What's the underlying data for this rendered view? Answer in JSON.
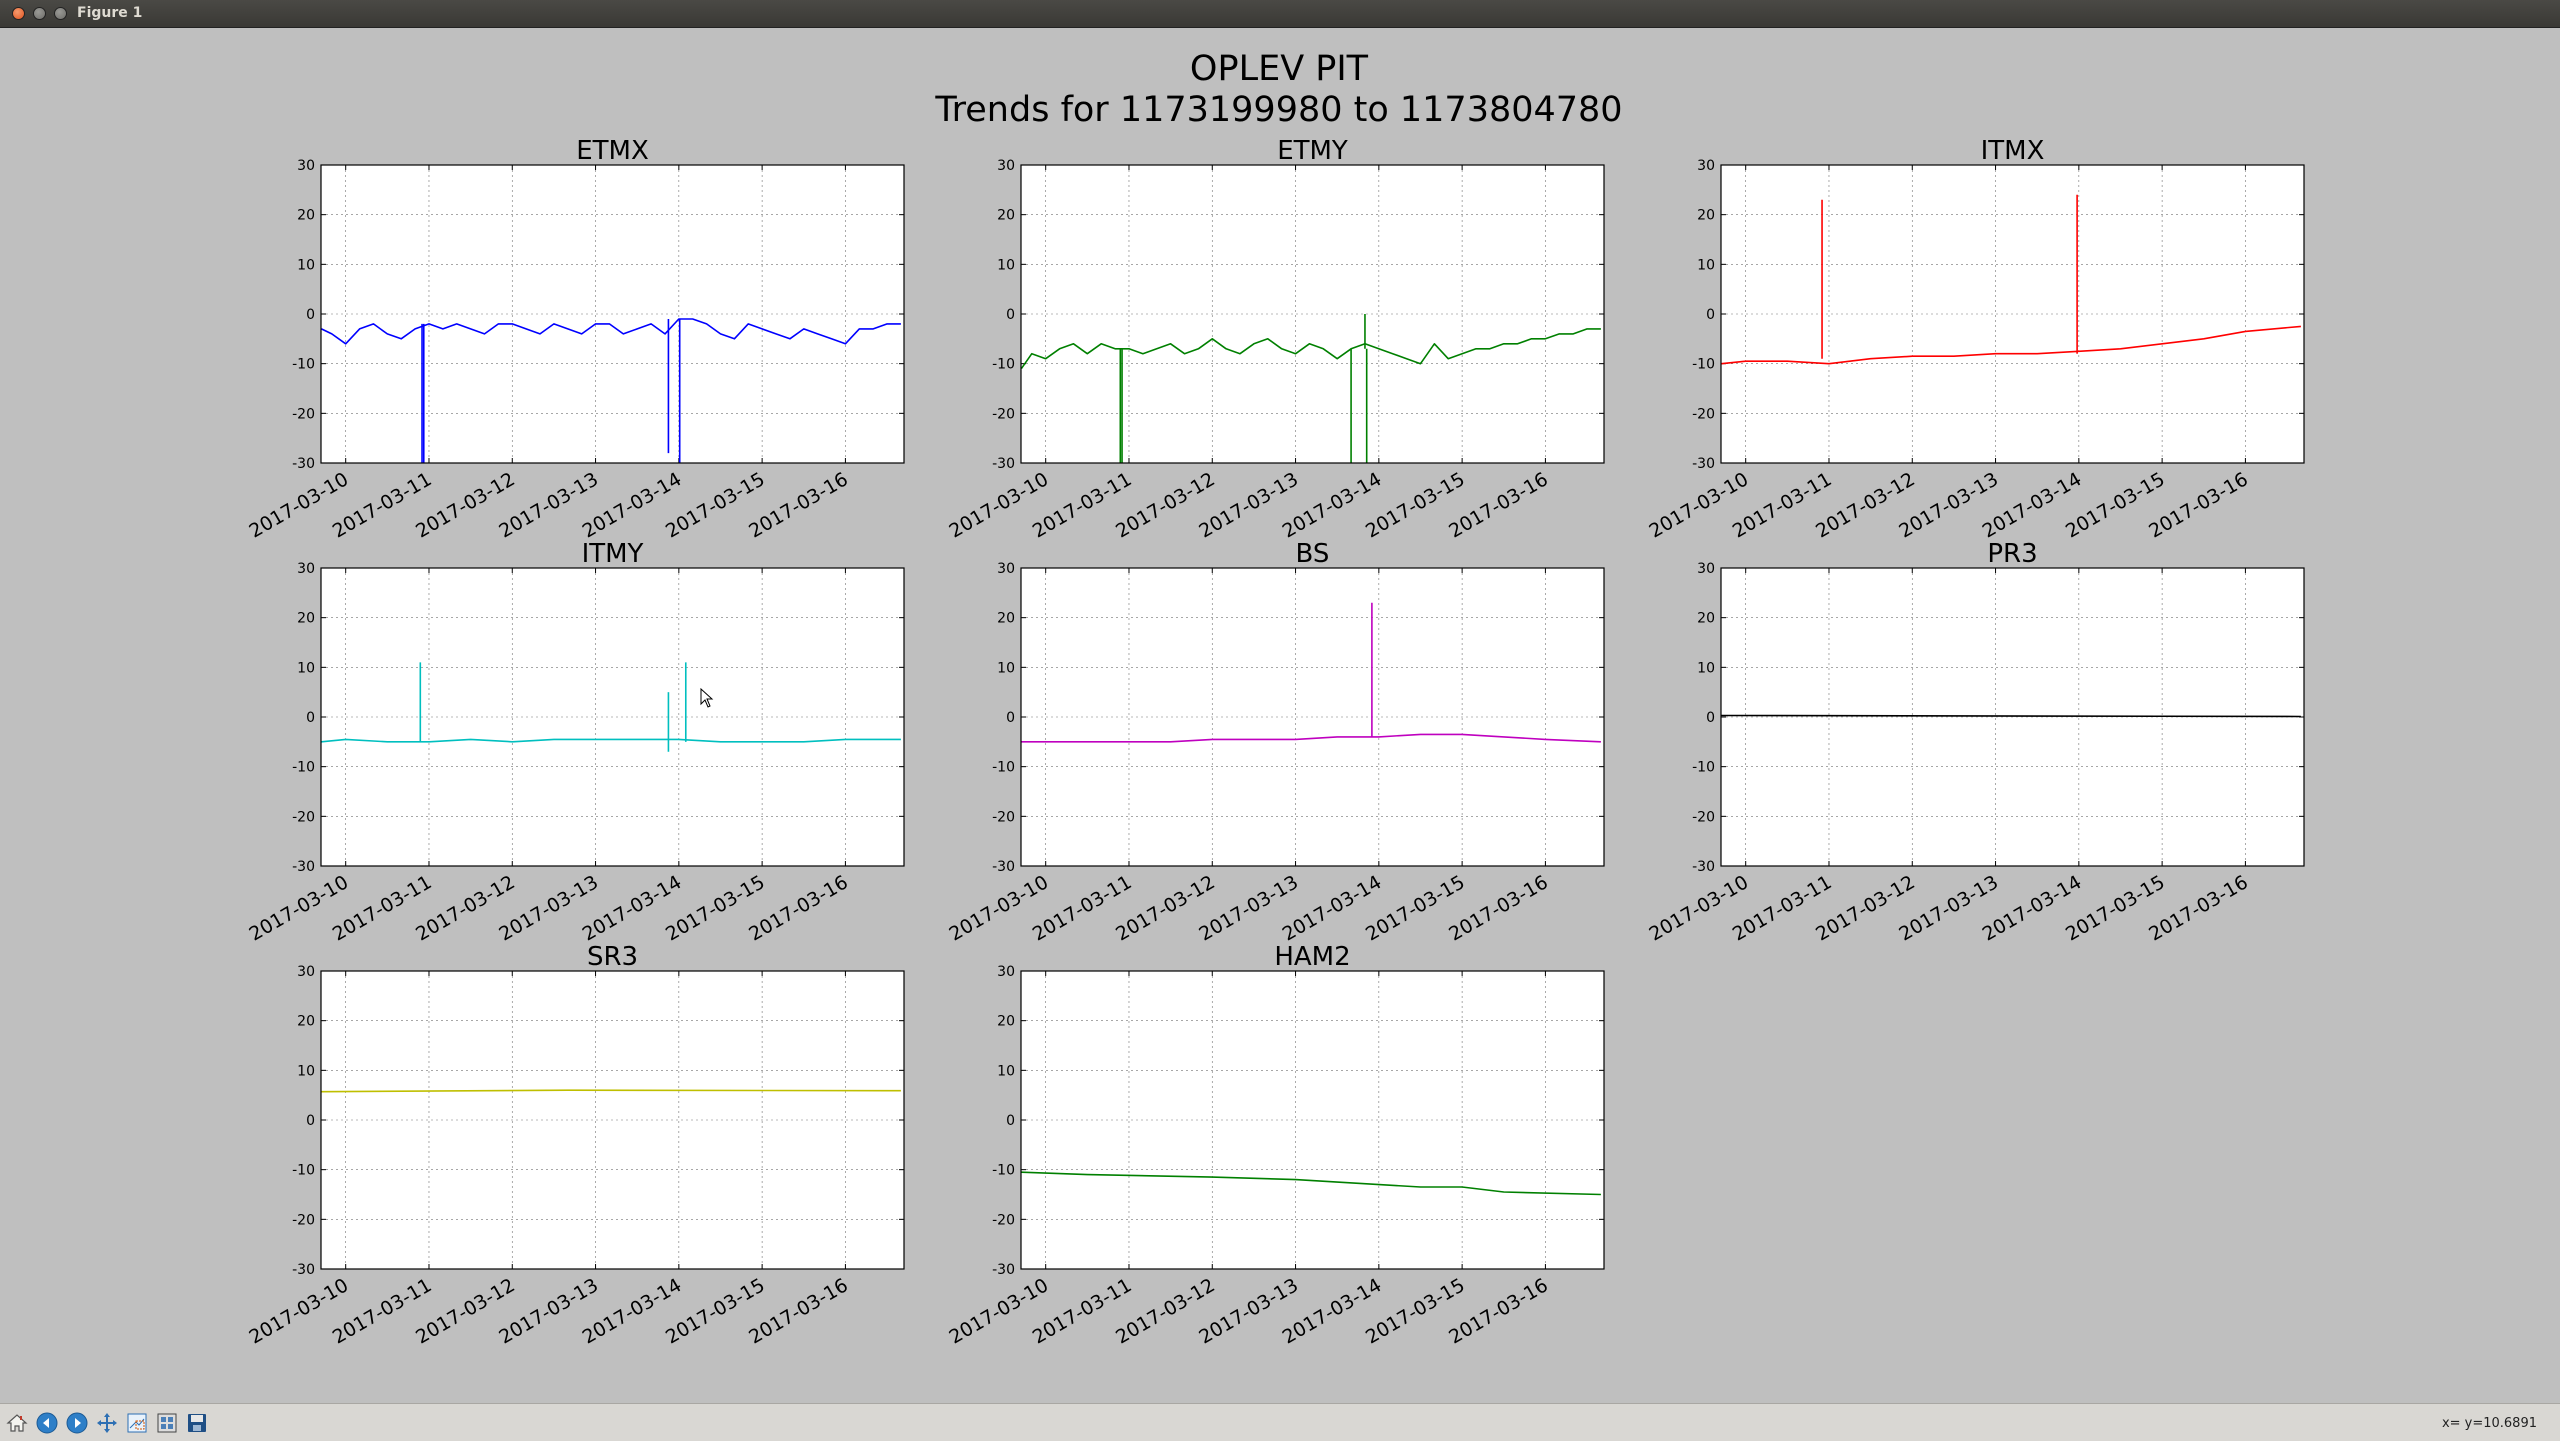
{
  "window": {
    "title": "Figure 1"
  },
  "figure": {
    "title_line1": "OPLEV PIT",
    "title_line2": "Trends for 1173199980 to 1173804780"
  },
  "toolbar": {
    "buttons": [
      "home-icon",
      "back-icon",
      "forward-icon",
      "pan-icon",
      "zoom-icon",
      "subplots-icon",
      "save-icon"
    ],
    "coord_readout": "x= y=10.6891"
  },
  "chart_data": [
    {
      "type": "line",
      "title": "ETMX",
      "color": "#0000ff",
      "ylim": [
        -30,
        30
      ],
      "yticks": [
        30,
        20,
        10,
        0,
        -10,
        -20,
        -30
      ],
      "xlim": [
        "2017-03-09T16:53",
        "2017-03-16T16:53"
      ],
      "xticks": [
        "2017-03-10",
        "2017-03-11",
        "2017-03-12",
        "2017-03-13",
        "2017-03-14",
        "2017-03-15",
        "2017-03-16"
      ],
      "grid": true,
      "x": [
        "2017-03-09T17:00",
        "2017-03-09T20:00",
        "2017-03-10T00:00",
        "2017-03-10T04:00",
        "2017-03-10T08:00",
        "2017-03-10T12:00",
        "2017-03-10T16:00",
        "2017-03-10T20:00",
        "2017-03-11T00:00",
        "2017-03-11T04:00",
        "2017-03-11T08:00",
        "2017-03-11T12:00",
        "2017-03-11T16:00",
        "2017-03-11T20:00",
        "2017-03-12T00:00",
        "2017-03-12T04:00",
        "2017-03-12T08:00",
        "2017-03-12T12:00",
        "2017-03-12T16:00",
        "2017-03-12T20:00",
        "2017-03-13T00:00",
        "2017-03-13T04:00",
        "2017-03-13T08:00",
        "2017-03-13T12:00",
        "2017-03-13T16:00",
        "2017-03-13T20:00",
        "2017-03-14T00:00",
        "2017-03-14T04:00",
        "2017-03-14T08:00",
        "2017-03-14T12:00",
        "2017-03-14T16:00",
        "2017-03-14T20:00",
        "2017-03-15T00:00",
        "2017-03-15T04:00",
        "2017-03-15T08:00",
        "2017-03-15T12:00",
        "2017-03-15T16:00",
        "2017-03-15T20:00",
        "2017-03-16T00:00",
        "2017-03-16T04:00",
        "2017-03-16T08:00",
        "2017-03-16T12:00",
        "2017-03-16T16:00"
      ],
      "y": [
        -3,
        -4,
        -6,
        -3,
        -2,
        -4,
        -5,
        -3,
        -2,
        -3,
        -2,
        -3,
        -4,
        -2,
        -2,
        -3,
        -4,
        -2,
        -3,
        -4,
        -2,
        -2,
        -4,
        -3,
        -2,
        -4,
        -1,
        -1,
        -2,
        -4,
        -5,
        -2,
        -3,
        -4,
        -5,
        -3,
        -4,
        -5,
        -6,
        -3,
        -3,
        -2,
        -2
      ],
      "spikes": [
        {
          "x": "2017-03-10T22:00",
          "from": -2,
          "to": -30
        },
        {
          "x": "2017-03-10T22:30",
          "from": -2,
          "to": -30
        },
        {
          "x": "2017-03-13T21:00",
          "from": -1,
          "to": -28
        },
        {
          "x": "2017-03-14T00:15",
          "from": -1,
          "to": -30
        }
      ]
    },
    {
      "type": "line",
      "title": "ETMY",
      "color": "#008000",
      "ylim": [
        -30,
        30
      ],
      "yticks": [
        30,
        20,
        10,
        0,
        -10,
        -20,
        -30
      ],
      "xlim": [
        "2017-03-09T16:53",
        "2017-03-16T16:53"
      ],
      "xticks": [
        "2017-03-10",
        "2017-03-11",
        "2017-03-12",
        "2017-03-13",
        "2017-03-14",
        "2017-03-15",
        "2017-03-16"
      ],
      "grid": true,
      "x": [
        "2017-03-09T17:00",
        "2017-03-09T20:00",
        "2017-03-10T00:00",
        "2017-03-10T04:00",
        "2017-03-10T08:00",
        "2017-03-10T12:00",
        "2017-03-10T16:00",
        "2017-03-10T20:00",
        "2017-03-11T00:00",
        "2017-03-11T04:00",
        "2017-03-11T08:00",
        "2017-03-11T12:00",
        "2017-03-11T16:00",
        "2017-03-11T20:00",
        "2017-03-12T00:00",
        "2017-03-12T04:00",
        "2017-03-12T08:00",
        "2017-03-12T12:00",
        "2017-03-12T16:00",
        "2017-03-12T20:00",
        "2017-03-13T00:00",
        "2017-03-13T04:00",
        "2017-03-13T08:00",
        "2017-03-13T12:00",
        "2017-03-13T16:00",
        "2017-03-13T20:00",
        "2017-03-14T00:00",
        "2017-03-14T04:00",
        "2017-03-14T08:00",
        "2017-03-14T12:00",
        "2017-03-14T16:00",
        "2017-03-14T20:00",
        "2017-03-15T00:00",
        "2017-03-15T04:00",
        "2017-03-15T08:00",
        "2017-03-15T12:00",
        "2017-03-15T16:00",
        "2017-03-15T20:00",
        "2017-03-16T00:00",
        "2017-03-16T04:00",
        "2017-03-16T08:00",
        "2017-03-16T12:00",
        "2017-03-16T16:00"
      ],
      "y": [
        -11,
        -8,
        -9,
        -7,
        -6,
        -8,
        -6,
        -7,
        -7,
        -8,
        -7,
        -6,
        -8,
        -7,
        -5,
        -7,
        -8,
        -6,
        -5,
        -7,
        -8,
        -6,
        -7,
        -9,
        -7,
        -6,
        -7,
        -8,
        -9,
        -10,
        -6,
        -9,
        -8,
        -7,
        -7,
        -6,
        -6,
        -5,
        -5,
        -4,
        -4,
        -3,
        -3
      ],
      "spikes": [
        {
          "x": "2017-03-10T21:30",
          "from": -7,
          "to": -30
        },
        {
          "x": "2017-03-10T22:00",
          "from": -7,
          "to": -30
        },
        {
          "x": "2017-03-13T16:00",
          "from": -7,
          "to": -30
        },
        {
          "x": "2017-03-13T20:00",
          "from": -7,
          "to": 0
        },
        {
          "x": "2017-03-13T20:30",
          "from": -7,
          "to": -30
        }
      ]
    },
    {
      "type": "line",
      "title": "ITMX",
      "color": "#ff0000",
      "ylim": [
        -30,
        30
      ],
      "yticks": [
        30,
        20,
        10,
        0,
        -10,
        -20,
        -30
      ],
      "xlim": [
        "2017-03-09T16:53",
        "2017-03-16T16:53"
      ],
      "xticks": [
        "2017-03-10",
        "2017-03-11",
        "2017-03-12",
        "2017-03-13",
        "2017-03-14",
        "2017-03-15",
        "2017-03-16"
      ],
      "grid": true,
      "x": [
        "2017-03-09T17:00",
        "2017-03-10T00:00",
        "2017-03-10T12:00",
        "2017-03-11T00:00",
        "2017-03-11T12:00",
        "2017-03-12T00:00",
        "2017-03-12T12:00",
        "2017-03-13T00:00",
        "2017-03-13T12:00",
        "2017-03-14T00:00",
        "2017-03-14T12:00",
        "2017-03-15T00:00",
        "2017-03-15T12:00",
        "2017-03-16T00:00",
        "2017-03-16T16:00"
      ],
      "y": [
        -10,
        -9.5,
        -9.5,
        -10,
        -9,
        -8.5,
        -8.5,
        -8,
        -8,
        -7.5,
        -7,
        -6,
        -5,
        -3.5,
        -2.5
      ],
      "spikes": [
        {
          "x": "2017-03-10T22:00",
          "from": -9,
          "to": 23
        },
        {
          "x": "2017-03-13T23:30",
          "from": -8,
          "to": 24
        }
      ]
    },
    {
      "type": "line",
      "title": "ITMY",
      "color": "#00bfbf",
      "ylim": [
        -30,
        30
      ],
      "yticks": [
        30,
        20,
        10,
        0,
        -10,
        -20,
        -30
      ],
      "xlim": [
        "2017-03-09T16:53",
        "2017-03-16T16:53"
      ],
      "xticks": [
        "2017-03-10",
        "2017-03-11",
        "2017-03-12",
        "2017-03-13",
        "2017-03-14",
        "2017-03-15",
        "2017-03-16"
      ],
      "grid": true,
      "x": [
        "2017-03-09T17:00",
        "2017-03-10T00:00",
        "2017-03-10T12:00",
        "2017-03-11T00:00",
        "2017-03-11T12:00",
        "2017-03-12T00:00",
        "2017-03-12T12:00",
        "2017-03-13T00:00",
        "2017-03-13T12:00",
        "2017-03-14T00:00",
        "2017-03-14T12:00",
        "2017-03-15T00:00",
        "2017-03-15T12:00",
        "2017-03-16T00:00",
        "2017-03-16T16:00"
      ],
      "y": [
        -5,
        -4.5,
        -5,
        -5,
        -4.5,
        -5,
        -4.5,
        -4.5,
        -4.5,
        -4.5,
        -5,
        -5,
        -5,
        -4.5,
        -4.5
      ],
      "spikes": [
        {
          "x": "2017-03-10T21:30",
          "from": -5,
          "to": 11
        },
        {
          "x": "2017-03-13T21:00",
          "from": -7,
          "to": 5
        },
        {
          "x": "2017-03-14T02:00",
          "from": -5,
          "to": 11
        }
      ]
    },
    {
      "type": "line",
      "title": "BS",
      "color": "#bf00bf",
      "ylim": [
        -30,
        30
      ],
      "yticks": [
        30,
        20,
        10,
        0,
        -10,
        -20,
        -30
      ],
      "xlim": [
        "2017-03-09T16:53",
        "2017-03-16T16:53"
      ],
      "xticks": [
        "2017-03-10",
        "2017-03-11",
        "2017-03-12",
        "2017-03-13",
        "2017-03-14",
        "2017-03-15",
        "2017-03-16"
      ],
      "grid": true,
      "x": [
        "2017-03-09T17:00",
        "2017-03-10T00:00",
        "2017-03-10T12:00",
        "2017-03-11T00:00",
        "2017-03-11T12:00",
        "2017-03-12T00:00",
        "2017-03-12T12:00",
        "2017-03-13T00:00",
        "2017-03-13T12:00",
        "2017-03-14T00:00",
        "2017-03-14T12:00",
        "2017-03-15T00:00",
        "2017-03-15T12:00",
        "2017-03-16T00:00",
        "2017-03-16T16:00"
      ],
      "y": [
        -5,
        -5,
        -5,
        -5,
        -5,
        -4.5,
        -4.5,
        -4.5,
        -4,
        -4,
        -3.5,
        -3.5,
        -4,
        -4.5,
        -5
      ],
      "spikes": [
        {
          "x": "2017-03-13T22:00",
          "from": -4,
          "to": 23
        }
      ]
    },
    {
      "type": "line",
      "title": "PR3",
      "color": "#000000",
      "ylim": [
        -30,
        30
      ],
      "yticks": [
        30,
        20,
        10,
        0,
        -10,
        -20,
        -30
      ],
      "xlim": [
        "2017-03-09T16:53",
        "2017-03-16T16:53"
      ],
      "xticks": [
        "2017-03-10",
        "2017-03-11",
        "2017-03-12",
        "2017-03-13",
        "2017-03-14",
        "2017-03-15",
        "2017-03-16"
      ],
      "grid": true,
      "x": [
        "2017-03-09T17:00",
        "2017-03-16T16:00"
      ],
      "y": [
        0.3,
        0.1
      ],
      "spikes": []
    },
    {
      "type": "line",
      "title": "SR3",
      "color": "#bfbf00",
      "ylim": [
        -30,
        30
      ],
      "yticks": [
        30,
        20,
        10,
        0,
        -10,
        -20,
        -30
      ],
      "xlim": [
        "2017-03-09T16:53",
        "2017-03-16T16:53"
      ],
      "xticks": [
        "2017-03-10",
        "2017-03-11",
        "2017-03-12",
        "2017-03-13",
        "2017-03-14",
        "2017-03-15",
        "2017-03-16"
      ],
      "grid": true,
      "x": [
        "2017-03-09T17:00",
        "2017-03-12T16:00",
        "2017-03-16T16:00"
      ],
      "y": [
        5.7,
        6.0,
        5.9
      ],
      "spikes": []
    },
    {
      "type": "line",
      "title": "HAM2",
      "color": "#008000",
      "ylim": [
        -30,
        30
      ],
      "yticks": [
        30,
        20,
        10,
        0,
        -10,
        -20,
        -30
      ],
      "xlim": [
        "2017-03-09T16:53",
        "2017-03-16T16:53"
      ],
      "xticks": [
        "2017-03-10",
        "2017-03-11",
        "2017-03-12",
        "2017-03-13",
        "2017-03-14",
        "2017-03-15",
        "2017-03-16"
      ],
      "grid": true,
      "x": [
        "2017-03-09T17:00",
        "2017-03-10T12:00",
        "2017-03-12T00:00",
        "2017-03-13T00:00",
        "2017-03-13T12:00",
        "2017-03-14T12:00",
        "2017-03-15T00:00",
        "2017-03-15T12:00",
        "2017-03-16T16:00"
      ],
      "y": [
        -10.5,
        -11,
        -11.5,
        -12,
        -12.5,
        -13.5,
        -13.5,
        -14.5,
        -15
      ],
      "spikes": []
    }
  ]
}
